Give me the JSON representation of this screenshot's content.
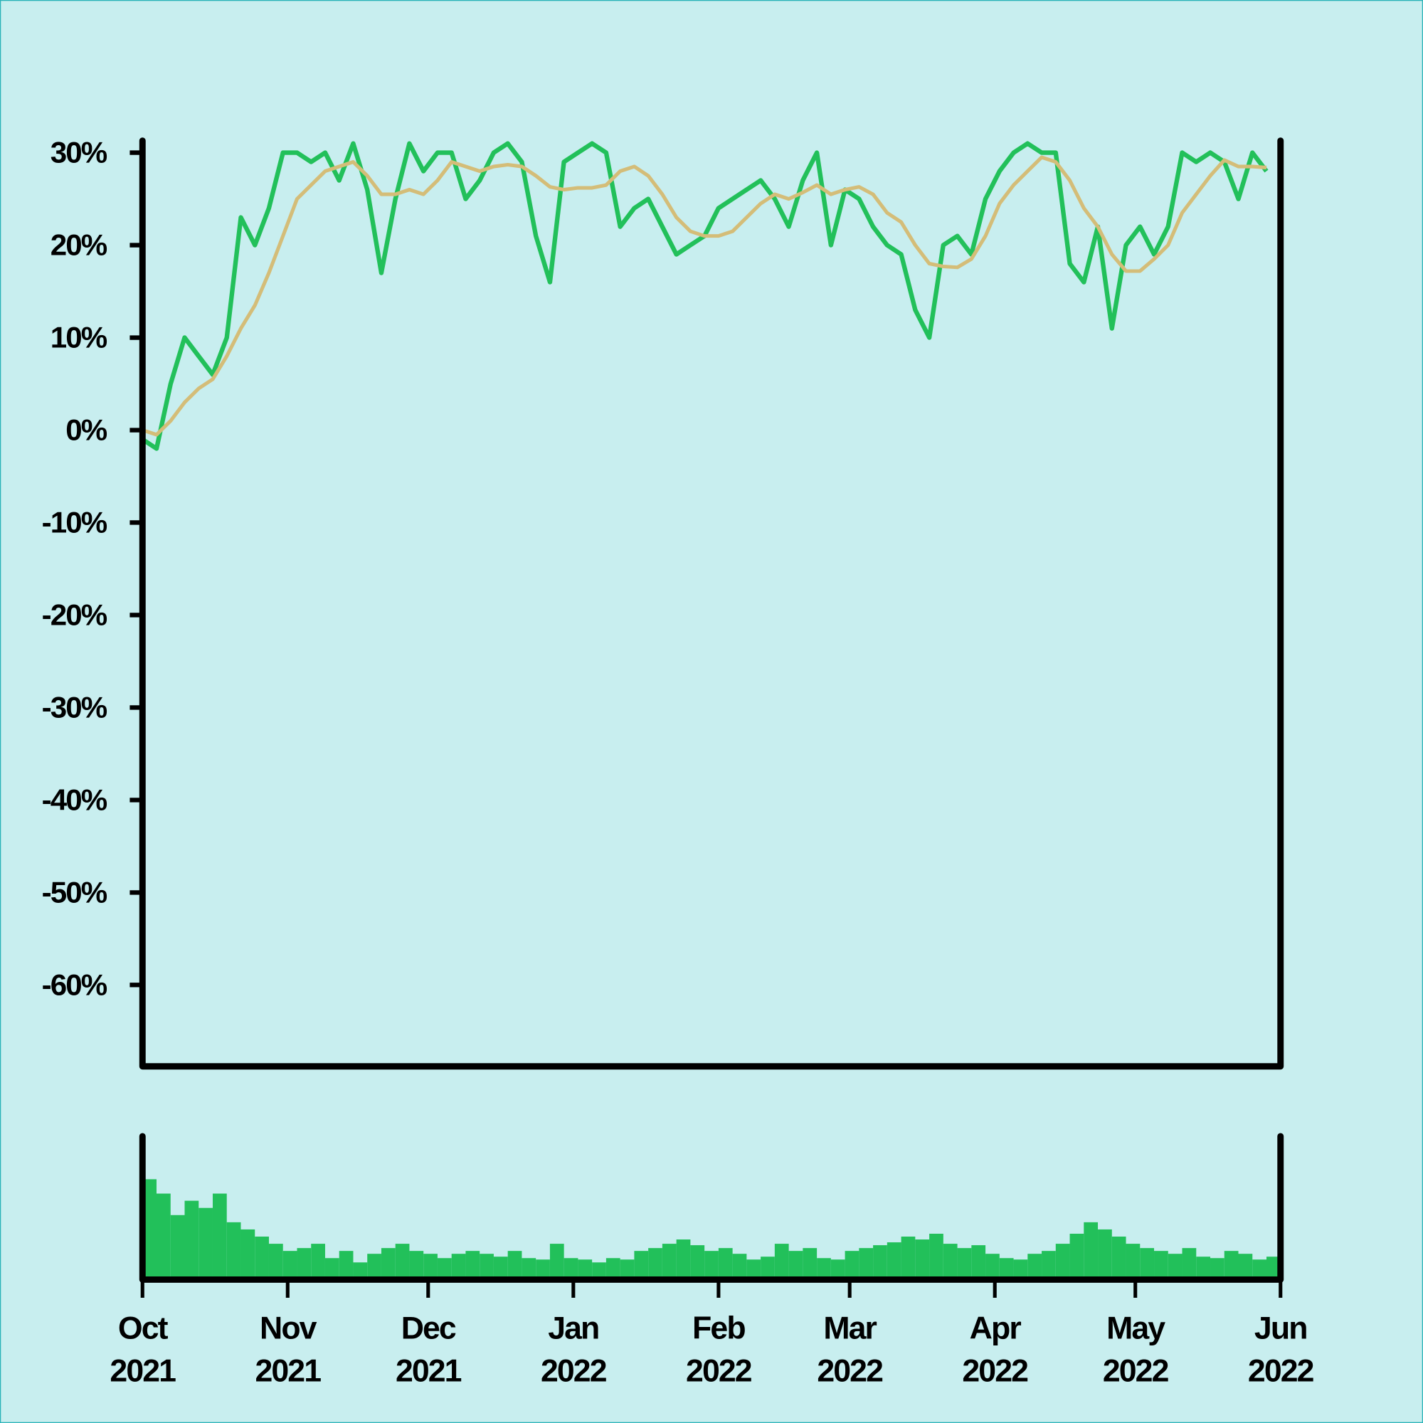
{
  "chart_data": [
    {
      "type": "line",
      "x": [
        "2021-10-01",
        "2021-10-04",
        "2021-10-07",
        "2021-10-10",
        "2021-10-13",
        "2021-10-16",
        "2021-10-19",
        "2021-10-22",
        "2021-10-25",
        "2021-10-28",
        "2021-10-31",
        "2021-11-03",
        "2021-11-06",
        "2021-11-09",
        "2021-11-12",
        "2021-11-15",
        "2021-11-18",
        "2021-11-21",
        "2021-11-24",
        "2021-11-27",
        "2021-11-30",
        "2021-12-03",
        "2021-12-06",
        "2021-12-09",
        "2021-12-12",
        "2021-12-15",
        "2021-12-18",
        "2021-12-21",
        "2021-12-24",
        "2021-12-27",
        "2021-12-30",
        "2022-01-02",
        "2022-01-05",
        "2022-01-08",
        "2022-01-11",
        "2022-01-14",
        "2022-01-17",
        "2022-01-20",
        "2022-01-23",
        "2022-01-26",
        "2022-01-29",
        "2022-02-01",
        "2022-02-04",
        "2022-02-07",
        "2022-02-10",
        "2022-02-13",
        "2022-02-16",
        "2022-02-19",
        "2022-02-22",
        "2022-02-25",
        "2022-02-28",
        "2022-03-03",
        "2022-03-06",
        "2022-03-09",
        "2022-03-12",
        "2022-03-15",
        "2022-03-18",
        "2022-03-21",
        "2022-03-24",
        "2022-03-27",
        "2022-03-30",
        "2022-04-02",
        "2022-04-05",
        "2022-04-08",
        "2022-04-11",
        "2022-04-14",
        "2022-04-17",
        "2022-04-20",
        "2022-04-23",
        "2022-04-26",
        "2022-04-29",
        "2022-05-02",
        "2022-05-05",
        "2022-05-08",
        "2022-05-11",
        "2022-05-14",
        "2022-05-17",
        "2022-05-20",
        "2022-05-23",
        "2022-05-26",
        "2022-05-29"
      ],
      "series": [
        {
          "color": "#22c05a",
          "values": [
            -1,
            -2,
            5,
            10,
            8,
            6,
            10,
            23,
            20,
            24,
            30,
            30,
            29,
            30,
            27,
            31,
            26,
            17,
            25,
            31,
            28,
            30,
            30,
            25,
            27,
            30,
            31,
            29,
            21,
            16,
            29,
            30,
            31,
            30,
            22,
            24,
            25,
            22,
            19,
            20,
            21,
            24,
            25,
            26,
            27,
            25,
            22,
            27,
            30,
            20,
            26,
            25,
            22,
            20,
            19,
            13,
            10,
            20,
            21,
            19,
            25,
            28,
            30,
            31,
            30,
            30,
            18,
            16,
            22,
            11,
            20,
            22,
            19,
            22,
            30,
            29,
            30,
            29,
            25,
            30,
            28
          ]
        },
        {
          "color": "#d4bd78",
          "values": [
            0,
            -0.5,
            1,
            3,
            4.5,
            5.5,
            8,
            11,
            13.5,
            17,
            21,
            25,
            26.5,
            28,
            28.5,
            29,
            27.5,
            25.5,
            25.5,
            26,
            25.5,
            27,
            29,
            28.5,
            28,
            28.5,
            28.7,
            28.5,
            27.5,
            26.3,
            26,
            26.2,
            26.2,
            26.5,
            28,
            28.5,
            27.5,
            25.5,
            23,
            21.5,
            21,
            21,
            21.5,
            23,
            24.5,
            25.5,
            25,
            25.7,
            26.5,
            25.5,
            26,
            26.3,
            25.5,
            23.5,
            22.5,
            20,
            18,
            17.7,
            17.6,
            18.5,
            21,
            24.5,
            26.5,
            28,
            29.5,
            29,
            27,
            24,
            22,
            19,
            17.2,
            17.2,
            18.5,
            20,
            23.5,
            25.5,
            27.5,
            29.2,
            28.5,
            28.5,
            28.4
          ]
        }
      ],
      "xlim": [
        "2021-10-01",
        "2022-06-01"
      ],
      "ylim": [
        -68.8,
        31.3
      ],
      "yticks": [
        {
          "value": 30,
          "label": "30%"
        },
        {
          "value": 20,
          "label": "20%"
        },
        {
          "value": 10,
          "label": "10%"
        },
        {
          "value": 0,
          "label": "0%"
        },
        {
          "value": -10,
          "label": "-10%"
        },
        {
          "value": -20,
          "label": "-20%"
        },
        {
          "value": -30,
          "label": "-30%"
        },
        {
          "value": -40,
          "label": "-40%"
        },
        {
          "value": -50,
          "label": "-50%"
        },
        {
          "value": -60,
          "label": "-60%"
        }
      ]
    },
    {
      "type": "bar",
      "color": "#22c05a",
      "x": [
        "2021-10-01",
        "2021-10-04",
        "2021-10-07",
        "2021-10-10",
        "2021-10-13",
        "2021-10-16",
        "2021-10-19",
        "2021-10-22",
        "2021-10-25",
        "2021-10-28",
        "2021-10-31",
        "2021-11-03",
        "2021-11-06",
        "2021-11-09",
        "2021-11-12",
        "2021-11-15",
        "2021-11-18",
        "2021-11-21",
        "2021-11-24",
        "2021-11-27",
        "2021-11-30",
        "2021-12-03",
        "2021-12-06",
        "2021-12-09",
        "2021-12-12",
        "2021-12-15",
        "2021-12-18",
        "2021-12-21",
        "2021-12-24",
        "2021-12-27",
        "2021-12-30",
        "2022-01-02",
        "2022-01-05",
        "2022-01-08",
        "2022-01-11",
        "2022-01-14",
        "2022-01-17",
        "2022-01-20",
        "2022-01-23",
        "2022-01-26",
        "2022-01-29",
        "2022-02-01",
        "2022-02-04",
        "2022-02-07",
        "2022-02-10",
        "2022-02-13",
        "2022-02-16",
        "2022-02-19",
        "2022-02-22",
        "2022-02-25",
        "2022-02-28",
        "2022-03-03",
        "2022-03-06",
        "2022-03-09",
        "2022-03-12",
        "2022-03-15",
        "2022-03-18",
        "2022-03-21",
        "2022-03-24",
        "2022-03-27",
        "2022-03-30",
        "2022-04-02",
        "2022-04-05",
        "2022-04-08",
        "2022-04-11",
        "2022-04-14",
        "2022-04-17",
        "2022-04-20",
        "2022-04-23",
        "2022-04-26",
        "2022-04-29",
        "2022-05-02",
        "2022-05-05",
        "2022-05-08",
        "2022-05-11",
        "2022-05-14",
        "2022-05-17",
        "2022-05-20",
        "2022-05-23",
        "2022-05-26",
        "2022-05-29"
      ],
      "values": [
        70,
        60,
        45,
        55,
        50,
        60,
        40,
        35,
        30,
        25,
        20,
        22,
        25,
        15,
        20,
        12,
        18,
        22,
        25,
        20,
        18,
        15,
        18,
        20,
        18,
        16,
        20,
        15,
        14,
        25,
        15,
        14,
        12,
        15,
        14,
        20,
        22,
        25,
        28,
        24,
        20,
        22,
        18,
        14,
        16,
        25,
        20,
        22,
        15,
        14,
        20,
        22,
        24,
        26,
        30,
        28,
        32,
        25,
        22,
        24,
        18,
        15,
        14,
        18,
        20,
        25,
        32,
        40,
        35,
        30,
        25,
        22,
        20,
        18,
        22,
        16,
        15,
        20,
        18,
        14,
        16
      ],
      "xlim": [
        "2021-10-01",
        "2022-06-01"
      ],
      "ylim": [
        0,
        100
      ],
      "xticks": [
        {
          "value": "2021-10-01",
          "label": "Oct 2021"
        },
        {
          "value": "2021-11-01",
          "label": "Nov 2021"
        },
        {
          "value": "2021-12-01",
          "label": "Dec 2021"
        },
        {
          "value": "2022-01-01",
          "label": "Jan 2022"
        },
        {
          "value": "2022-02-01",
          "label": "Feb 2022"
        },
        {
          "value": "2022-03-01",
          "label": "Mar 2022"
        },
        {
          "value": "2022-04-01",
          "label": "Apr 2022"
        },
        {
          "value": "2022-05-01",
          "label": "May 2022"
        },
        {
          "value": "2022-06-01",
          "label": "Jun 2022"
        }
      ]
    }
  ]
}
